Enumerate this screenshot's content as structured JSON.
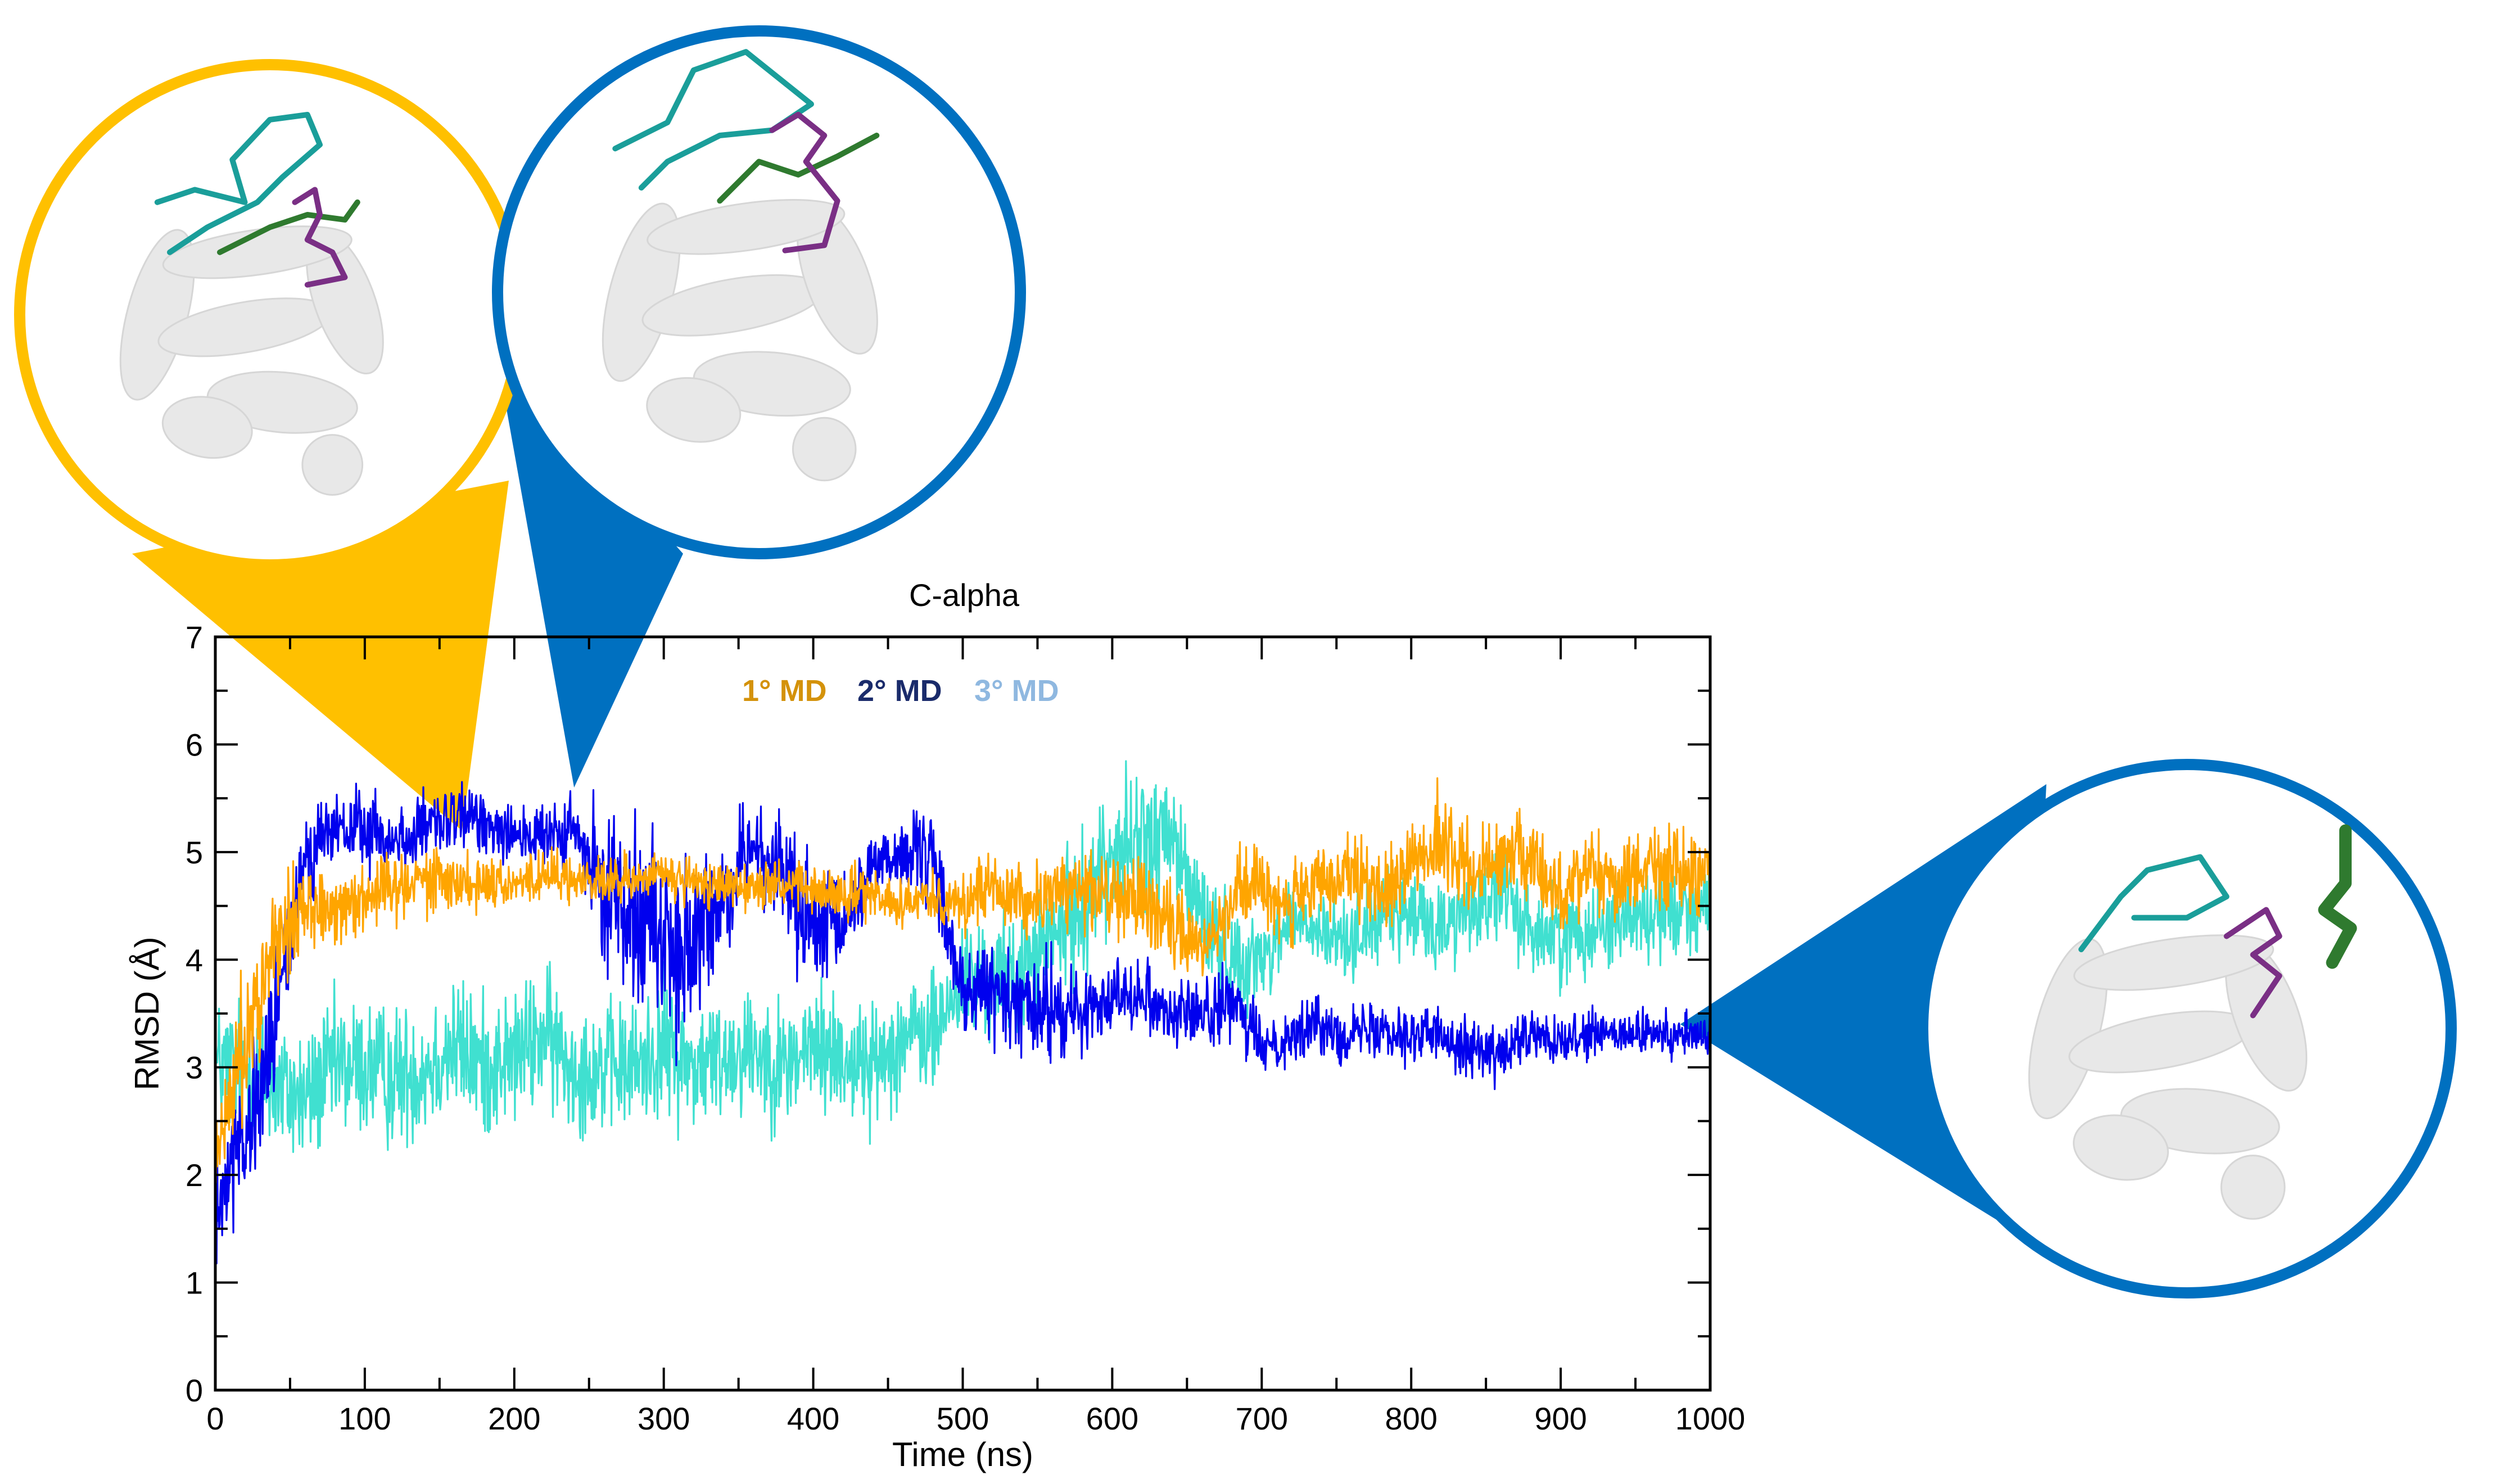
{
  "chart_data": {
    "type": "line",
    "title": "C-alpha",
    "xlabel": "Time (ns)",
    "ylabel": "RMSD (Å)",
    "xlim": [
      0,
      1000
    ],
    "ylim": [
      0,
      7
    ],
    "xticks": [
      "0",
      "100",
      "200",
      "300",
      "400",
      "500",
      "600",
      "700",
      "800",
      "900",
      "1000"
    ],
    "yticks": [
      "0",
      "1",
      "2",
      "3",
      "4",
      "5",
      "6",
      "7"
    ],
    "grid": false,
    "legend_placement": "top-center",
    "series": [
      {
        "name": "1° MD",
        "color": "#FFA500",
        "x": [
          0,
          20,
          40,
          60,
          80,
          100,
          120,
          140,
          160,
          180,
          200,
          220,
          240,
          260,
          280,
          300,
          320,
          340,
          360,
          380,
          400,
          420,
          440,
          460,
          480,
          500,
          520,
          540,
          560,
          580,
          600,
          620,
          640,
          660,
          680,
          700,
          720,
          740,
          760,
          780,
          800,
          820,
          840,
          860,
          880,
          900,
          920,
          940,
          960,
          980,
          1000
        ],
        "y": [
          2.1,
          3.3,
          4.2,
          4.5,
          4.5,
          4.6,
          4.7,
          4.8,
          4.7,
          4.75,
          4.7,
          4.8,
          4.75,
          4.7,
          4.75,
          4.8,
          4.7,
          4.7,
          4.7,
          4.7,
          4.65,
          4.6,
          4.6,
          4.55,
          4.6,
          4.5,
          4.7,
          4.5,
          4.6,
          4.7,
          4.6,
          4.55,
          4.3,
          4.1,
          4.6,
          4.7,
          4.5,
          4.7,
          4.75,
          4.6,
          4.9,
          5.1,
          4.8,
          5.0,
          4.9,
          4.6,
          4.9,
          4.7,
          4.9,
          4.8,
          4.8
        ],
        "spread": [
          0.3,
          0.6,
          0.5,
          0.35,
          0.3,
          0.3,
          0.3,
          0.3,
          0.25,
          0.25,
          0.2,
          0.2,
          0.2,
          0.2,
          0.2,
          0.2,
          0.2,
          0.2,
          0.2,
          0.2,
          0.2,
          0.25,
          0.2,
          0.2,
          0.2,
          0.3,
          0.3,
          0.3,
          0.3,
          0.35,
          0.35,
          0.35,
          0.35,
          0.3,
          0.35,
          0.35,
          0.35,
          0.35,
          0.35,
          0.35,
          0.35,
          0.4,
          0.35,
          0.35,
          0.35,
          0.35,
          0.35,
          0.35,
          0.35,
          0.35,
          0.35
        ]
      },
      {
        "name": "2° MD",
        "color": "#0000EE",
        "x": [
          0,
          20,
          40,
          60,
          80,
          100,
          120,
          140,
          160,
          180,
          200,
          220,
          240,
          260,
          280,
          300,
          320,
          340,
          360,
          380,
          400,
          420,
          440,
          460,
          480,
          500,
          520,
          540,
          560,
          580,
          600,
          620,
          640,
          660,
          680,
          700,
          720,
          740,
          760,
          780,
          800,
          820,
          840,
          860,
          880,
          900,
          920,
          940,
          960,
          980,
          1000
        ],
        "y": [
          1.8,
          2.2,
          3.4,
          5.0,
          5.2,
          5.2,
          5.1,
          5.2,
          5.3,
          5.3,
          5.2,
          5.1,
          5.2,
          4.6,
          4.6,
          4.2,
          4.0,
          4.6,
          5.1,
          4.8,
          4.2,
          4.3,
          4.9,
          5.0,
          4.9,
          3.7,
          3.7,
          3.6,
          3.5,
          3.5,
          3.7,
          3.7,
          3.5,
          3.5,
          3.6,
          3.2,
          3.3,
          3.4,
          3.3,
          3.4,
          3.3,
          3.3,
          3.2,
          3.1,
          3.3,
          3.2,
          3.3,
          3.3,
          3.3,
          3.3,
          3.3
        ],
        "spread": [
          0.5,
          0.6,
          0.6,
          0.4,
          0.35,
          0.35,
          0.3,
          0.3,
          0.3,
          0.3,
          0.3,
          0.3,
          0.3,
          0.6,
          0.8,
          0.8,
          0.8,
          0.6,
          0.3,
          0.5,
          0.6,
          0.5,
          0.3,
          0.3,
          0.4,
          0.4,
          0.4,
          0.4,
          0.5,
          0.3,
          0.3,
          0.3,
          0.3,
          0.3,
          0.3,
          0.25,
          0.25,
          0.25,
          0.25,
          0.25,
          0.25,
          0.25,
          0.25,
          0.25,
          0.25,
          0.2,
          0.2,
          0.2,
          0.2,
          0.2,
          0.2
        ]
      },
      {
        "name": "3° MD",
        "color": "#40E0D0",
        "x": [
          0,
          20,
          40,
          60,
          80,
          100,
          120,
          140,
          160,
          180,
          200,
          220,
          240,
          260,
          280,
          300,
          320,
          340,
          360,
          380,
          400,
          420,
          440,
          460,
          480,
          500,
          520,
          540,
          560,
          580,
          600,
          620,
          640,
          660,
          680,
          700,
          720,
          740,
          760,
          780,
          800,
          820,
          840,
          860,
          880,
          900,
          920,
          940,
          960,
          980,
          1000
        ],
        "y": [
          3.0,
          3.0,
          2.8,
          2.7,
          3.0,
          3.0,
          2.9,
          3.0,
          3.2,
          3.0,
          3.1,
          3.3,
          3.0,
          3.0,
          3.0,
          3.2,
          3.0,
          3.1,
          3.2,
          3.0,
          3.2,
          3.1,
          3.0,
          3.3,
          3.3,
          3.8,
          3.8,
          3.9,
          4.2,
          4.5,
          5.0,
          5.1,
          5.1,
          4.4,
          4.0,
          4.0,
          4.4,
          4.2,
          4.2,
          4.4,
          4.4,
          4.3,
          4.5,
          4.6,
          4.3,
          4.2,
          4.3,
          4.4,
          4.4,
          4.5,
          4.5
        ],
        "spread": [
          0.6,
          0.6,
          0.6,
          0.6,
          0.6,
          0.6,
          0.6,
          0.6,
          0.6,
          0.6,
          0.55,
          0.6,
          0.55,
          0.55,
          0.55,
          0.6,
          0.55,
          0.55,
          0.55,
          0.55,
          0.55,
          0.55,
          0.5,
          0.5,
          0.5,
          0.5,
          0.5,
          0.5,
          0.5,
          0.6,
          0.6,
          0.6,
          0.6,
          0.5,
          0.45,
          0.35,
          0.35,
          0.35,
          0.35,
          0.35,
          0.4,
          0.4,
          0.4,
          0.4,
          0.4,
          0.4,
          0.4,
          0.4,
          0.4,
          0.4,
          0.4
        ]
      }
    ],
    "insets": [
      {
        "name": "structure-1",
        "border_color": "#FFC000",
        "points_to_time_ns": 165,
        "points_to_rmsd": 5.2
      },
      {
        "name": "structure-2",
        "border_color": "#0070C0",
        "points_to_time_ns": 240,
        "points_to_rmsd": 5.6
      },
      {
        "name": "structure-3",
        "border_color": "#0070C0",
        "points_to_time_ns": 980,
        "points_to_rmsd": 3.4
      }
    ],
    "inset_colors": {
      "protein": "#e8e8e8",
      "loop_teal": "#1a9e9a",
      "loop_green": "#2f7a2f",
      "loop_purple": "#7a2f85"
    }
  }
}
